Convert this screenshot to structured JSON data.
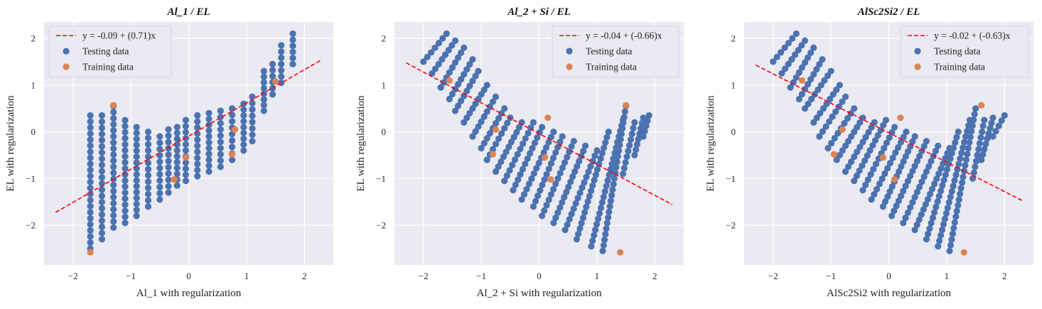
{
  "colors": {
    "testing": "#4C72B0",
    "training": "#DD8452",
    "fit": "#FF0000",
    "panel_bg": "#EAEAF2",
    "grid": "#FFFFFF"
  },
  "chart_data": [
    {
      "type": "scatter",
      "title": "Al_1 / EL",
      "xlabel": "Al_1 with regularization",
      "ylabel": "EL  with regularization",
      "xlim": [
        -2.5,
        2.5
      ],
      "ylim": [
        -2.85,
        2.35
      ],
      "xticks": [
        -2,
        -1,
        0,
        1,
        2
      ],
      "yticks": [
        -2,
        -1,
        0,
        1,
        2
      ],
      "xtick_labels": [
        "−2",
        "−1",
        "0",
        "1",
        "2"
      ],
      "ytick_labels": [
        "−2",
        "−1",
        "0",
        "1",
        "2"
      ],
      "grid": true,
      "legend_position": "top-left",
      "legend": [
        "y = -0.09 + (0.71)x",
        "Testing data",
        "Training data"
      ],
      "fit_line": {
        "intercept": -0.09,
        "slope": 0.71,
        "x_range": [
          -2.3,
          2.3
        ]
      },
      "testing_columns": [
        {
          "x": -1.7,
          "y_min": -2.5,
          "y_max": 0.35
        },
        {
          "x": -1.5,
          "y_min": -2.3,
          "y_max": 0.35
        },
        {
          "x": -1.3,
          "y_min": -2.05,
          "y_max": 0.55
        },
        {
          "x": -1.1,
          "y_min": -1.95,
          "y_max": 0.25
        },
        {
          "x": -0.9,
          "y_min": -1.8,
          "y_max": 0.1
        },
        {
          "x": -0.7,
          "y_min": -1.6,
          "y_max": 0.0
        },
        {
          "x": -0.5,
          "y_min": -1.45,
          "y_max": -0.1
        },
        {
          "x": -0.35,
          "y_min": -1.3,
          "y_max": 0.05
        },
        {
          "x": -0.2,
          "y_min": -1.15,
          "y_max": 0.1
        },
        {
          "x": -0.05,
          "y_min": -1.05,
          "y_max": 0.25
        },
        {
          "x": 0.15,
          "y_min": -0.95,
          "y_max": 0.35
        },
        {
          "x": 0.35,
          "y_min": -0.85,
          "y_max": 0.4
        },
        {
          "x": 0.55,
          "y_min": -0.75,
          "y_max": 0.45
        },
        {
          "x": 0.75,
          "y_min": -0.6,
          "y_max": 0.5
        },
        {
          "x": 0.95,
          "y_min": -0.4,
          "y_max": 0.6
        },
        {
          "x": 1.1,
          "y_min": -0.2,
          "y_max": 0.75
        },
        {
          "x": 1.3,
          "y_min": 0.45,
          "y_max": 1.3
        },
        {
          "x": 1.45,
          "y_min": 0.8,
          "y_max": 1.45
        },
        {
          "x": 1.6,
          "y_min": 1.05,
          "y_max": 1.85
        },
        {
          "x": 1.8,
          "y_min": 1.45,
          "y_max": 2.1
        }
      ],
      "training_points": [
        [
          -1.3,
          0.57
        ],
        [
          -1.7,
          -2.58
        ],
        [
          -0.25,
          -1.02
        ],
        [
          -0.05,
          -0.55
        ],
        [
          0.75,
          -0.48
        ],
        [
          0.8,
          0.05
        ],
        [
          1.5,
          1.08
        ]
      ]
    },
    {
      "type": "scatter",
      "title": "Al_2 + Si / EL",
      "xlabel": "Al_2 + Si with regularization",
      "ylabel": "EL  with regularization",
      "xlim": [
        -2.5,
        2.5
      ],
      "ylim": [
        -2.85,
        2.35
      ],
      "xticks": [
        -2,
        -1,
        0,
        1,
        2
      ],
      "yticks": [
        -2,
        -1,
        0,
        1,
        2
      ],
      "xtick_labels": [
        "−2",
        "−1",
        "0",
        "1",
        "2"
      ],
      "ytick_labels": [
        "−2",
        "−1",
        "0",
        "1",
        "2"
      ],
      "grid": true,
      "legend_position": "top-right",
      "legend": [
        "y = -0.04 + (-0.66)x",
        "Testing data",
        "Training data"
      ],
      "fit_line": {
        "intercept": -0.04,
        "slope": -0.66,
        "x_range": [
          -2.3,
          2.3
        ]
      },
      "testing_bands": [
        {
          "x0": -2.0,
          "y0": 1.5,
          "x1": -1.6,
          "y1": 2.1
        },
        {
          "x0": -1.85,
          "y0": 1.25,
          "x1": -1.45,
          "y1": 1.95
        },
        {
          "x0": -1.7,
          "y0": 0.95,
          "x1": -1.3,
          "y1": 1.8
        },
        {
          "x0": -1.55,
          "y0": 0.7,
          "x1": -1.15,
          "y1": 1.55
        },
        {
          "x0": -1.45,
          "y0": 0.45,
          "x1": -1.05,
          "y1": 1.3
        },
        {
          "x0": -1.3,
          "y0": 0.2,
          "x1": -0.9,
          "y1": 1.0
        },
        {
          "x0": -1.15,
          "y0": -0.1,
          "x1": -0.75,
          "y1": 0.75
        },
        {
          "x0": -1.0,
          "y0": -0.35,
          "x1": -0.6,
          "y1": 0.5
        },
        {
          "x0": -0.9,
          "y0": -0.6,
          "x1": -0.5,
          "y1": 0.3
        },
        {
          "x0": -0.75,
          "y0": -0.85,
          "x1": -0.3,
          "y1": 0.2
        },
        {
          "x0": -0.6,
          "y0": -1.05,
          "x1": -0.1,
          "y1": 0.2
        },
        {
          "x0": -0.45,
          "y0": -1.25,
          "x1": 0.05,
          "y1": 0.1
        },
        {
          "x0": -0.3,
          "y0": -1.45,
          "x1": 0.25,
          "y1": 0.0
        },
        {
          "x0": -0.1,
          "y0": -1.6,
          "x1": 0.4,
          "y1": -0.1
        },
        {
          "x0": 0.05,
          "y0": -1.8,
          "x1": 0.6,
          "y1": -0.2
        },
        {
          "x0": 0.25,
          "y0": -1.95,
          "x1": 0.8,
          "y1": -0.3
        },
        {
          "x0": 0.45,
          "y0": -2.1,
          "x1": 1.0,
          "y1": -0.4
        },
        {
          "x0": 0.65,
          "y0": -2.3,
          "x1": 1.2,
          "y1": 0.0
        },
        {
          "x0": 0.9,
          "y0": -2.45,
          "x1": 1.45,
          "y1": 0.25
        },
        {
          "x0": 1.1,
          "y0": -2.55,
          "x1": 1.5,
          "y1": 0.55
        },
        {
          "x0": 1.45,
          "y0": -0.9,
          "x1": 1.65,
          "y1": 0.2
        },
        {
          "x0": 1.65,
          "y0": -0.5,
          "x1": 1.8,
          "y1": 0.3
        },
        {
          "x0": 1.8,
          "y0": -0.1,
          "x1": 1.9,
          "y1": 0.35
        }
      ],
      "training_points": [
        [
          -1.55,
          1.1
        ],
        [
          -0.8,
          -0.48
        ],
        [
          -0.75,
          0.05
        ],
        [
          0.1,
          -0.55
        ],
        [
          0.15,
          0.3
        ],
        [
          0.2,
          -1.02
        ],
        [
          1.5,
          0.57
        ],
        [
          1.4,
          -2.58
        ]
      ]
    },
    {
      "type": "scatter",
      "title": "AlSc2Si2 / EL",
      "xlabel": "AlSc2Si2 with regularization",
      "ylabel": "EL  with regularization",
      "xlim": [
        -2.5,
        2.5
      ],
      "ylim": [
        -2.85,
        2.35
      ],
      "xticks": [
        -2,
        -1,
        0,
        1,
        2
      ],
      "yticks": [
        -2,
        -1,
        0,
        1,
        2
      ],
      "xtick_labels": [
        "−2",
        "−1",
        "0",
        "1",
        "2"
      ],
      "ytick_labels": [
        "−2",
        "−1",
        "0",
        "1",
        "2"
      ],
      "grid": true,
      "legend_position": "top-right",
      "legend": [
        "y = -0.02 + (-0.63)x",
        "Testing data",
        "Training data"
      ],
      "fit_line": {
        "intercept": -0.02,
        "slope": -0.63,
        "x_range": [
          -2.3,
          2.3
        ]
      },
      "testing_bands": [
        {
          "x0": -2.0,
          "y0": 1.5,
          "x1": -1.6,
          "y1": 2.1
        },
        {
          "x0": -1.85,
          "y0": 1.25,
          "x1": -1.45,
          "y1": 1.95
        },
        {
          "x0": -1.7,
          "y0": 0.95,
          "x1": -1.3,
          "y1": 1.8
        },
        {
          "x0": -1.55,
          "y0": 0.7,
          "x1": -1.15,
          "y1": 1.55
        },
        {
          "x0": -1.45,
          "y0": 0.5,
          "x1": -1.0,
          "y1": 1.3
        },
        {
          "x0": -1.3,
          "y0": 0.2,
          "x1": -0.85,
          "y1": 1.0
        },
        {
          "x0": -1.2,
          "y0": -0.1,
          "x1": -0.75,
          "y1": 0.75
        },
        {
          "x0": -1.05,
          "y0": -0.35,
          "x1": -0.6,
          "y1": 0.5
        },
        {
          "x0": -0.9,
          "y0": -0.6,
          "x1": -0.45,
          "y1": 0.3
        },
        {
          "x0": -0.75,
          "y0": -0.85,
          "x1": -0.25,
          "y1": 0.2
        },
        {
          "x0": -0.6,
          "y0": -1.05,
          "x1": -0.05,
          "y1": 0.25
        },
        {
          "x0": -0.45,
          "y0": -1.25,
          "x1": 0.1,
          "y1": 0.1
        },
        {
          "x0": -0.3,
          "y0": -1.45,
          "x1": 0.3,
          "y1": 0.0
        },
        {
          "x0": -0.1,
          "y0": -1.6,
          "x1": 0.45,
          "y1": -0.1
        },
        {
          "x0": 0.05,
          "y0": -1.8,
          "x1": 0.65,
          "y1": -0.2
        },
        {
          "x0": 0.25,
          "y0": -1.95,
          "x1": 0.85,
          "y1": -0.3
        },
        {
          "x0": 0.45,
          "y0": -2.1,
          "x1": 1.05,
          "y1": -0.35
        },
        {
          "x0": 0.65,
          "y0": -2.3,
          "x1": 1.2,
          "y1": 0.0
        },
        {
          "x0": 0.85,
          "y0": -2.45,
          "x1": 1.4,
          "y1": 0.25
        },
        {
          "x0": 1.05,
          "y0": -2.55,
          "x1": 1.5,
          "y1": 0.5
        },
        {
          "x0": 1.45,
          "y0": -1.0,
          "x1": 1.65,
          "y1": 0.25
        },
        {
          "x0": 1.6,
          "y0": -0.6,
          "x1": 1.8,
          "y1": 0.3
        },
        {
          "x0": 1.8,
          "y0": -0.1,
          "x1": 2.0,
          "y1": 0.35
        }
      ],
      "training_points": [
        [
          -1.5,
          1.1
        ],
        [
          -0.8,
          0.05
        ],
        [
          -0.95,
          -0.48
        ],
        [
          -0.1,
          -0.55
        ],
        [
          0.1,
          -1.02
        ],
        [
          0.2,
          0.3
        ],
        [
          1.6,
          0.57
        ],
        [
          1.3,
          -2.58
        ]
      ]
    }
  ]
}
